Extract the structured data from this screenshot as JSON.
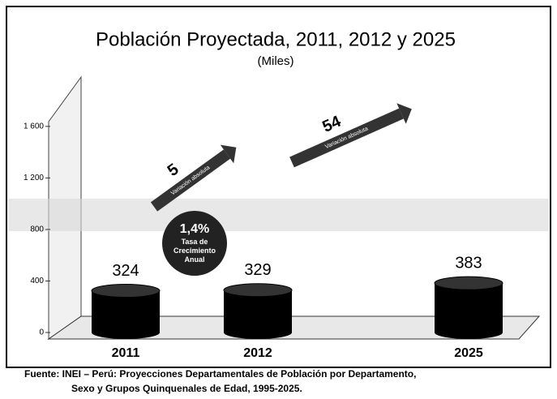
{
  "chart_data": {
    "type": "bar",
    "title": "Población Proyectada, 2011, 2012 y 2025",
    "subtitle": "(Miles)",
    "categories": [
      "2011",
      "2012",
      "2025"
    ],
    "values": [
      324,
      329,
      383
    ],
    "color": "#000000",
    "ylim": [
      0,
      1700
    ],
    "yticks": [
      0,
      400,
      800,
      {
        "value": 1200,
        "label": "1 200"
      },
      {
        "value": 1600,
        "label": "1 600"
      }
    ],
    "annotations": [
      {
        "value": 5,
        "label": "Variación absoluta"
      },
      {
        "value": 54,
        "label": "Variación absoluta"
      }
    ],
    "rate": {
      "label": "1,4%",
      "text": "Tasa de Crecimiento Anual"
    },
    "source": "Fuente: INEI – Perú: Proyecciones Departamentales de Población por Departamento,",
    "source2": "Sexo y Grupos Quinquenales de Edad, 1995-2025."
  }
}
